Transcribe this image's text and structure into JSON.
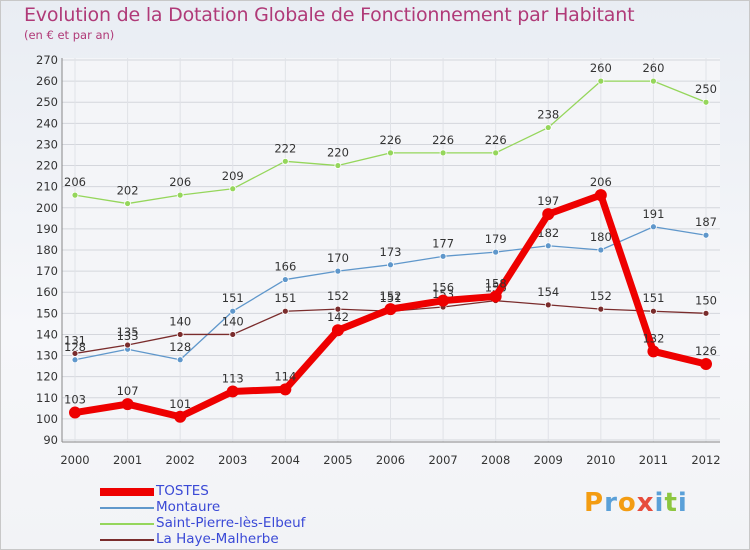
{
  "title": "Evolution de la Dotation Globale de Fonctionnement par Habitant",
  "subtitle": "(en € et par an)",
  "logo_letters": [
    "P",
    "r",
    "o",
    "x",
    "i",
    "t",
    "i"
  ],
  "colors": {
    "title": "#b03a78",
    "tostes": "#ee0000",
    "montaure": "#5f97cb",
    "saint_pierre": "#95d65b",
    "la_haye": "#7a2c2c",
    "logo": [
      "#f39c12",
      "#5aa0d8",
      "#f39c12",
      "#e74c3c",
      "#5aa0d8",
      "#8dc63f",
      "#5aa0d8"
    ]
  },
  "chart_data": {
    "type": "line",
    "title": "Evolution de la Dotation Globale de Fonctionnement par Habitant",
    "subtitle": "(en € et par an)",
    "xlabel": "",
    "ylabel": "",
    "ylim": [
      90,
      270
    ],
    "yticks": [
      90,
      100,
      110,
      120,
      130,
      140,
      150,
      160,
      170,
      180,
      190,
      200,
      210,
      220,
      230,
      240,
      250,
      260,
      270
    ],
    "grid": true,
    "legend": "bottom-left",
    "categories": [
      "2000",
      "2001",
      "2002",
      "2003",
      "2004",
      "2005",
      "2006",
      "2007",
      "2008",
      "2009",
      "2010",
      "2011",
      "2012"
    ],
    "series": [
      {
        "name": "Saint-Pierre-lès-Elbeuf",
        "values": [
          206,
          202,
          206,
          209,
          222,
          220,
          226,
          226,
          226,
          238,
          260,
          260,
          250
        ]
      },
      {
        "name": "Montaure",
        "values": [
          128,
          133,
          128,
          151,
          166,
          170,
          173,
          177,
          179,
          182,
          180,
          191,
          187
        ]
      },
      {
        "name": "La Haye-Malherbe",
        "values": [
          131,
          135,
          140,
          140,
          151,
          152,
          151,
          153,
          156,
          154,
          152,
          151,
          150
        ]
      },
      {
        "name": "TOSTES",
        "values": [
          103,
          107,
          101,
          113,
          114,
          142,
          152,
          156,
          158,
          197,
          206,
          132,
          126
        ]
      }
    ]
  },
  "legend_items": [
    {
      "key": "tostes",
      "label": "TOSTES"
    },
    {
      "key": "montaure",
      "label": "Montaure"
    },
    {
      "key": "saint_pierre",
      "label": "Saint-Pierre-lès-Elbeuf"
    },
    {
      "key": "la_haye",
      "label": "La Haye-Malherbe"
    }
  ]
}
